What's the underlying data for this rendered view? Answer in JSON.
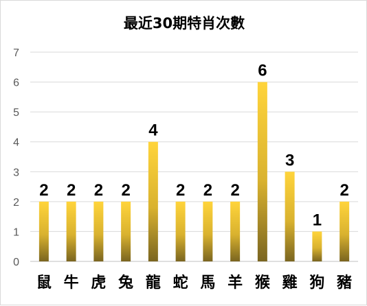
{
  "chart_data": {
    "type": "bar",
    "title": "最近30期特肖次數",
    "xlabel": "",
    "ylabel": "",
    "categories": [
      "鼠",
      "牛",
      "虎",
      "兔",
      "龍",
      "蛇",
      "馬",
      "羊",
      "猴",
      "雞",
      "狗",
      "豬"
    ],
    "values": [
      2,
      2,
      2,
      2,
      4,
      2,
      2,
      2,
      6,
      3,
      1,
      2
    ],
    "ylim": [
      0,
      7
    ],
    "yticks": [
      0,
      1,
      2,
      3,
      4,
      5,
      6,
      7
    ],
    "grid": true,
    "legend": "none",
    "data_labels": true,
    "colors": {
      "bar_top": "#ffd43b",
      "bar_bottom": "#7a6520",
      "grid": "#d9d9d9",
      "axis": "#bfbfbf"
    }
  }
}
